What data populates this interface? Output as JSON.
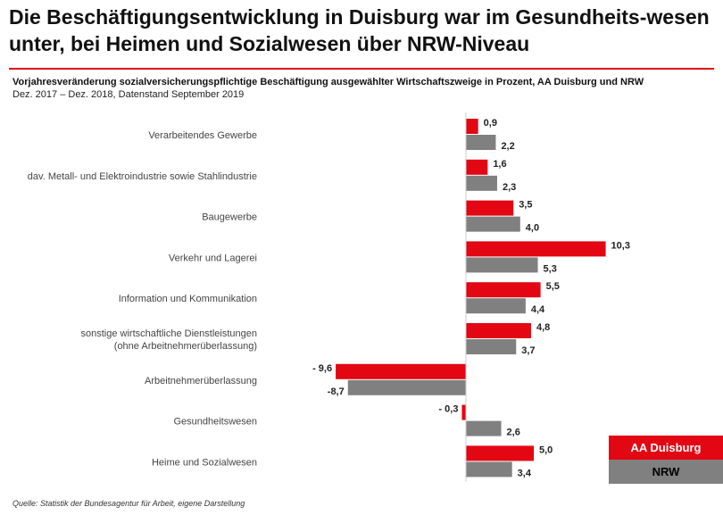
{
  "header": {
    "title": "Die Beschäftigungsentwicklung in Duisburg war im Gesundheits-wesen unter, bei Heimen und Sozialwesen über NRW-Niveau",
    "subtitle": "Vorjahresveränderung sozialversicherungspflichtige Beschäftigung ausgewählter Wirtschaftszweige in Prozent, AA Duisburg und NRW",
    "subline": "Dez. 2017 – Dez. 2018, Datenstand September 2019"
  },
  "colors": {
    "duisburg": "#e30613",
    "nrw": "#808080"
  },
  "legend": {
    "duisburg": "AA Duisburg",
    "nrw": "NRW"
  },
  "source": "Quelle: Statistik der Bundesagentur für Arbeit, eigene Darstellung",
  "chart_data": {
    "type": "bar",
    "orientation": "horizontal",
    "categories": [
      "Verarbeitendes Gewerbe",
      "dav. Metall- und Elektroindustrie sowie Stahlindustrie",
      "Baugewerbe",
      "Verkehr und Lagerei",
      "Information und Kommunikation",
      "sonstige wirtschaftliche Dienstleistungen (ohne Arbeitnehmerüberlassung)",
      "Arbeitnehmerüberlassung",
      "Gesundheitswesen",
      "Heime und Sozialwesen"
    ],
    "category_lines": [
      [
        "Verarbeitendes Gewerbe"
      ],
      [
        "dav. Metall- und Elektroindustrie sowie Stahlindustrie"
      ],
      [
        "Baugewerbe"
      ],
      [
        "Verkehr und Lagerei"
      ],
      [
        "Information und Kommunikation"
      ],
      [
        "sonstige wirtschaftliche Dienstleistungen",
        "(ohne Arbeitnehmerüberlassung)"
      ],
      [
        "Arbeitnehmerüberlassung"
      ],
      [
        "Gesundheitswesen"
      ],
      [
        "Heime und Sozialwesen"
      ]
    ],
    "series": [
      {
        "name": "AA Duisburg",
        "values": [
          0.9,
          1.6,
          3.5,
          10.3,
          5.5,
          4.8,
          -9.6,
          -0.3,
          5.0
        ],
        "labels": [
          "0,9",
          "1,6",
          "3,5",
          "10,3",
          "5,5",
          "4,8",
          "- 9,6",
          "- 0,3",
          "5,0"
        ]
      },
      {
        "name": "NRW",
        "values": [
          2.2,
          2.3,
          4.0,
          5.3,
          4.4,
          3.7,
          -8.7,
          2.6,
          3.4
        ],
        "labels": [
          "2,2",
          "2,3",
          "4,0",
          "5,3",
          "4,4",
          "3,7",
          "-8,7",
          "2,6",
          "3,4"
        ]
      }
    ],
    "legend_position": "bottom-right",
    "grid": false
  }
}
